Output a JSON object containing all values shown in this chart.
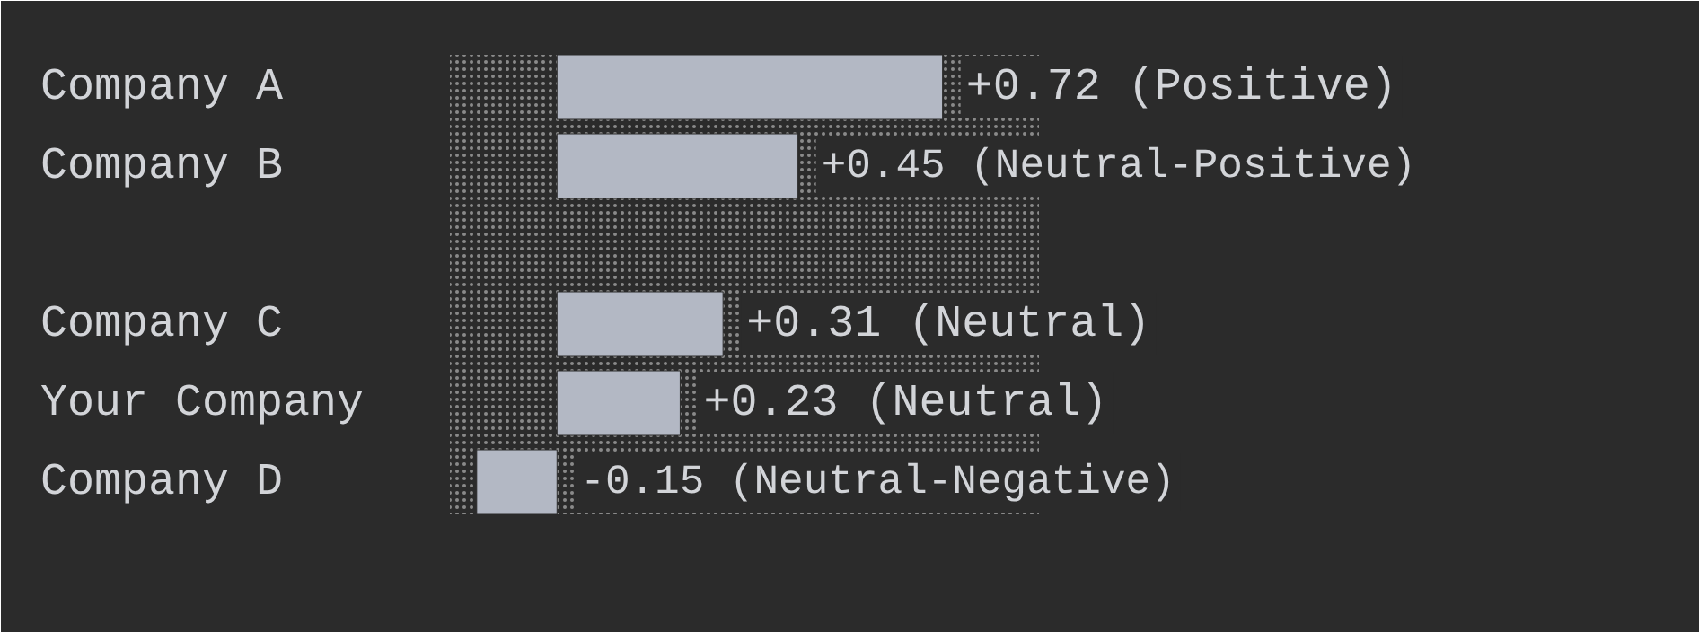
{
  "chart_data": {
    "type": "bar",
    "orientation": "horizontal",
    "categories": [
      "Company A",
      "Company B",
      "Company C",
      "Your Company",
      "Company D"
    ],
    "values": [
      0.72,
      0.45,
      0.31,
      0.23,
      -0.15
    ],
    "value_labels": [
      "+0.72 (Positive)",
      "+0.45 (Neutral-Positive)",
      "+0.31 (Neutral)",
      "+0.23 (Neutral)",
      "-0.15 (Neutral-Negative)"
    ],
    "color": "#b3b8c4",
    "xlim": [
      -0.2,
      0.9
    ],
    "tick_labels": false,
    "bands": [
      {
        "axis": "x",
        "from": -0.2,
        "to": 0.9,
        "color": "#8a8a8a"
      }
    ]
  }
}
